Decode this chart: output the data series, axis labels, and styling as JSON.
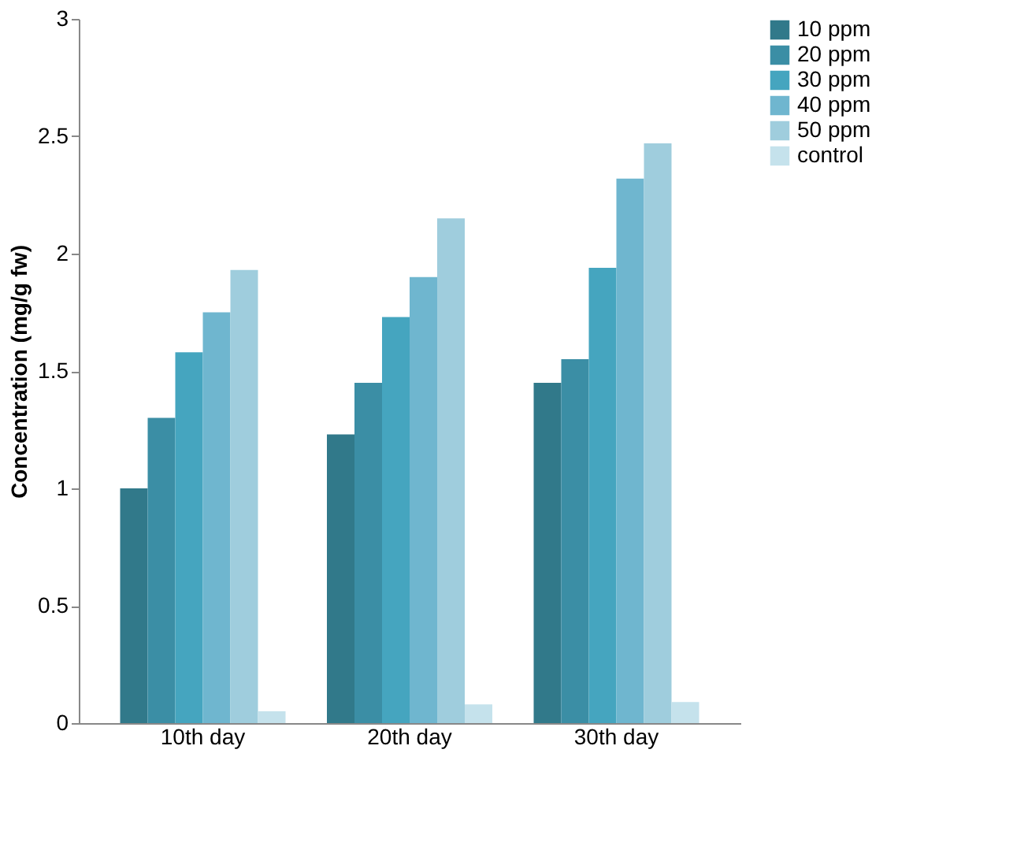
{
  "chart_data": {
    "type": "bar",
    "ylabel": "Concentration (mg/g fw)",
    "categories": [
      "10th day",
      "20th day",
      "30th day"
    ],
    "series": [
      {
        "name": "10 ppm",
        "color": "#31798a",
        "values": [
          1.0,
          1.23,
          1.45
        ]
      },
      {
        "name": "20 ppm",
        "color": "#3b8ea5",
        "values": [
          1.3,
          1.45,
          1.55
        ]
      },
      {
        "name": "30 ppm",
        "color": "#45a5bf",
        "values": [
          1.58,
          1.73,
          1.94
        ]
      },
      {
        "name": "40 ppm",
        "color": "#6fb6cf",
        "values": [
          1.75,
          1.9,
          2.32
        ]
      },
      {
        "name": "50 ppm",
        "color": "#9fcddd",
        "values": [
          1.93,
          2.15,
          2.47
        ]
      },
      {
        "name": "control",
        "color": "#c5e2ec",
        "values": [
          0.05,
          0.08,
          0.09
        ]
      }
    ],
    "ylim": [
      0,
      3
    ],
    "yticks": [
      0,
      0.5,
      1,
      1.5,
      2,
      2.5,
      3
    ],
    "grid": false,
    "legend": "right"
  }
}
